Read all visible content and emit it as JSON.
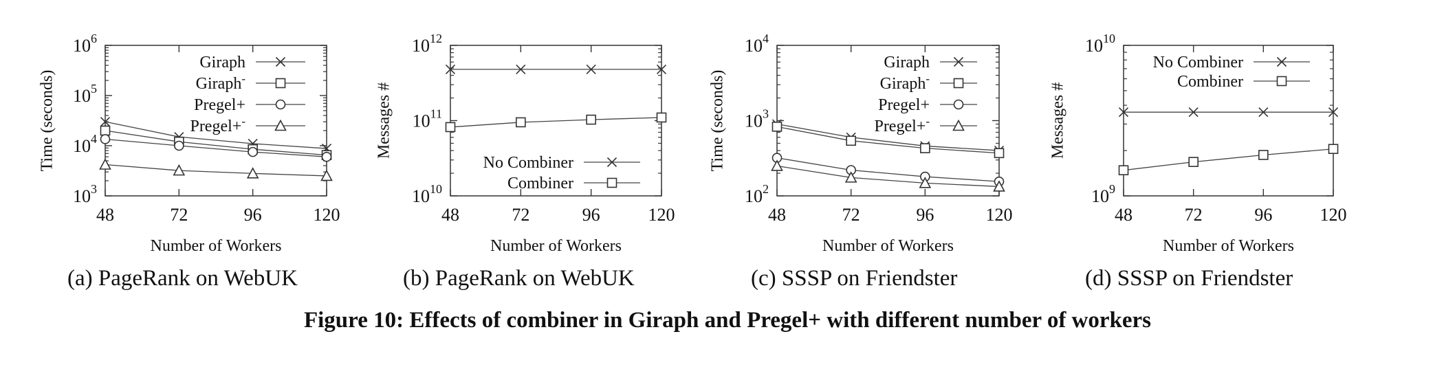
{
  "figure_caption": "Figure 10: Effects of combiner in Giraph and Pregel+ with different number of workers",
  "chart_data": [
    {
      "type": "line",
      "subcaption": "(a) PageRank on WebUK",
      "xlabel": "Number of Workers",
      "ylabel": "Time (seconds)",
      "yscale": "log",
      "ylim": [
        1000,
        1000000
      ],
      "x": [
        48,
        72,
        96,
        120
      ],
      "legend_position": "top-right",
      "series": [
        {
          "name": "Giraph",
          "marker": "cross",
          "values": [
            30000,
            15000,
            11000,
            8800
          ]
        },
        {
          "name": "Giraph-",
          "marker": "square",
          "values": [
            20000,
            12000,
            8500,
            6500
          ]
        },
        {
          "name": "Pregel+",
          "marker": "circle",
          "values": [
            13500,
            10000,
            7500,
            6000
          ]
        },
        {
          "name": "Pregel+-",
          "marker": "triangle",
          "values": [
            4200,
            3200,
            2800,
            2500
          ]
        }
      ]
    },
    {
      "type": "line",
      "subcaption": "(b) PageRank on WebUK",
      "xlabel": "Number of Workers",
      "ylabel": "Messages #",
      "yscale": "log",
      "ylim": [
        10000000000,
        1000000000000
      ],
      "x": [
        48,
        72,
        96,
        120
      ],
      "legend_position": "bottom-right",
      "series": [
        {
          "name": "No Combiner",
          "marker": "cross",
          "values": [
            480000000000,
            480000000000,
            480000000000,
            480000000000
          ]
        },
        {
          "name": "Combiner",
          "marker": "square",
          "values": [
            82000000000,
            95000000000,
            103000000000,
            110000000000
          ]
        }
      ]
    },
    {
      "type": "line",
      "subcaption": "(c) SSSP on Friendster",
      "xlabel": "Number of Workers",
      "ylabel": "Time (seconds)",
      "yscale": "log",
      "ylim": [
        100,
        10000
      ],
      "x": [
        48,
        72,
        96,
        120
      ],
      "legend_position": "top-right",
      "series": [
        {
          "name": "Giraph",
          "marker": "cross",
          "values": [
            900,
            600,
            460,
            400
          ]
        },
        {
          "name": "Giraph-",
          "marker": "square",
          "values": [
            830,
            540,
            430,
            370
          ]
        },
        {
          "name": "Pregel+",
          "marker": "circle",
          "values": [
            320,
            220,
            180,
            155
          ]
        },
        {
          "name": "Pregel+-",
          "marker": "triangle",
          "values": [
            250,
            175,
            148,
            133
          ]
        }
      ]
    },
    {
      "type": "line",
      "subcaption": "(d) SSSP on Friendster",
      "xlabel": "Number of Workers",
      "ylabel": "Messages #",
      "yscale": "log",
      "ylim": [
        1000000000,
        10000000000
      ],
      "x": [
        48,
        72,
        96,
        120
      ],
      "legend_position": "top-left",
      "series": [
        {
          "name": "No Combiner",
          "marker": "cross",
          "values": [
            3600000000,
            3600000000,
            3600000000,
            3600000000
          ]
        },
        {
          "name": "Combiner",
          "marker": "square",
          "values": [
            1480000000,
            1680000000,
            1870000000,
            2050000000
          ]
        }
      ]
    }
  ]
}
